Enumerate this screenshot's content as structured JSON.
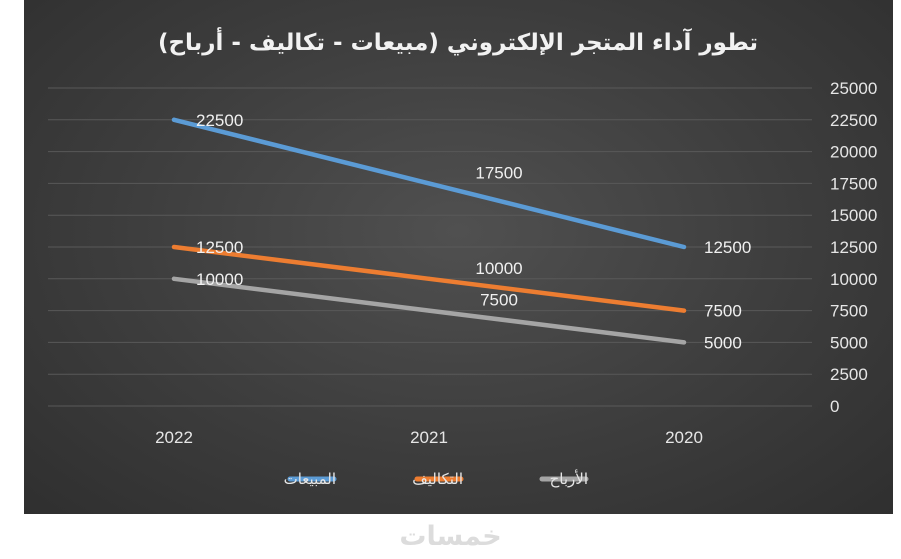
{
  "chart_data": {
    "type": "line",
    "title": "تطور آداء المتجر الإلكتروني (مبيعات - تكاليف - أرباح)",
    "categories": [
      "2022",
      "2021",
      "2020"
    ],
    "series": [
      {
        "name": "المبيعات",
        "values": [
          22500,
          17500,
          12500
        ],
        "color": "#5b9bd5"
      },
      {
        "name": "التكاليف",
        "values": [
          12500,
          10000,
          7500
        ],
        "color": "#ed7d31"
      },
      {
        "name": "الأرباح",
        "values": [
          10000,
          7500,
          5000
        ],
        "color": "#a5a5a5"
      }
    ],
    "ylim": [
      0,
      25000
    ],
    "ytick_step": 2500,
    "y_axis_side": "right",
    "grid": true,
    "legend_position": "bottom",
    "background_color": "#404040",
    "gridline_color": "#595959",
    "text_color": "#e6e6e6"
  },
  "watermark": "خمسات"
}
